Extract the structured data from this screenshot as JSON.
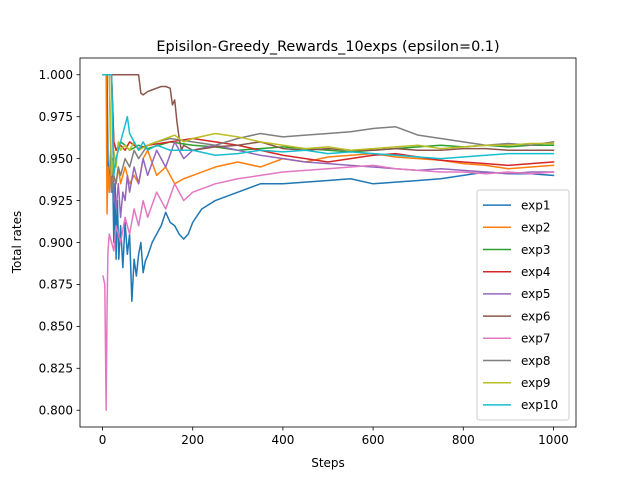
{
  "chart_data": {
    "type": "line",
    "title": "Episilon-Greedy_Rewards_10exps (epsilon=0.1)",
    "xlabel": "Steps",
    "ylabel": "Total rates",
    "xlim": [
      -50,
      1050
    ],
    "ylim": [
      0.79,
      1.01
    ],
    "xticks": [
      0,
      200,
      400,
      600,
      800,
      1000
    ],
    "yticks": [
      0.8,
      0.825,
      0.85,
      0.875,
      0.9,
      0.925,
      0.95,
      0.975,
      1.0
    ],
    "ytick_labels": [
      "0.800",
      "0.825",
      "0.850",
      "0.875",
      "0.900",
      "0.925",
      "0.950",
      "0.975",
      "1.000"
    ],
    "legend_position": "lower-right",
    "grid": false,
    "series": [
      {
        "name": "exp1",
        "color": "#1f77b4",
        "x": [
          1,
          10,
          12,
          15,
          18,
          20,
          22,
          25,
          28,
          30,
          33,
          36,
          40,
          45,
          50,
          55,
          60,
          65,
          70,
          75,
          80,
          85,
          90,
          95,
          100,
          110,
          120,
          130,
          140,
          150,
          160,
          170,
          180,
          190,
          200,
          220,
          250,
          300,
          350,
          400,
          450,
          500,
          550,
          600,
          650,
          700,
          750,
          800,
          850,
          900,
          950,
          1000
        ],
        "y": [
          1.0,
          1.0,
          0.95,
          0.93,
          0.955,
          0.93,
          0.95,
          0.9,
          0.935,
          0.89,
          0.925,
          0.89,
          0.91,
          0.885,
          0.912,
          0.893,
          0.905,
          0.865,
          0.89,
          0.88,
          0.893,
          0.9,
          0.882,
          0.889,
          0.892,
          0.9,
          0.905,
          0.91,
          0.918,
          0.912,
          0.91,
          0.905,
          0.902,
          0.905,
          0.912,
          0.92,
          0.925,
          0.93,
          0.935,
          0.935,
          0.936,
          0.937,
          0.938,
          0.935,
          0.936,
          0.937,
          0.938,
          0.94,
          0.942,
          0.941,
          0.941,
          0.94
        ]
      },
      {
        "name": "exp2",
        "color": "#ff7f0e",
        "x": [
          1,
          8,
          10,
          12,
          15,
          18,
          20,
          25,
          30,
          35,
          40,
          50,
          60,
          70,
          80,
          90,
          100,
          120,
          140,
          160,
          180,
          200,
          250,
          300,
          350,
          400,
          450,
          500,
          550,
          600,
          650,
          700,
          750,
          800,
          850,
          900,
          950,
          1000
        ],
        "y": [
          1.0,
          1.0,
          0.917,
          0.945,
          0.93,
          0.945,
          0.936,
          0.94,
          0.935,
          0.945,
          0.935,
          0.945,
          0.935,
          0.94,
          0.935,
          0.95,
          0.955,
          0.94,
          0.945,
          0.935,
          0.938,
          0.94,
          0.945,
          0.948,
          0.945,
          0.95,
          0.948,
          0.951,
          0.952,
          0.953,
          0.951,
          0.95,
          0.949,
          0.947,
          0.946,
          0.944,
          0.945,
          0.946
        ]
      },
      {
        "name": "exp3",
        "color": "#2ca02c",
        "x": [
          1,
          20,
          25,
          30,
          40,
          50,
          60,
          80,
          100,
          150,
          200,
          250,
          300,
          350,
          400,
          450,
          500,
          550,
          600,
          650,
          700,
          750,
          800,
          850,
          900,
          950,
          1000
        ],
        "y": [
          1.0,
          1.0,
          0.96,
          0.955,
          0.96,
          0.958,
          0.955,
          0.958,
          0.956,
          0.96,
          0.958,
          0.957,
          0.955,
          0.956,
          0.957,
          0.956,
          0.955,
          0.954,
          0.955,
          0.956,
          0.957,
          0.958,
          0.957,
          0.958,
          0.957,
          0.958,
          0.958
        ]
      },
      {
        "name": "exp4",
        "color": "#d62728",
        "x": [
          1,
          20,
          25,
          30,
          40,
          50,
          60,
          80,
          100,
          150,
          200,
          250,
          300,
          350,
          400,
          450,
          500,
          550,
          600,
          650,
          700,
          750,
          800,
          850,
          900,
          950,
          1000
        ],
        "y": [
          1.0,
          1.0,
          0.96,
          0.955,
          0.958,
          0.955,
          0.96,
          0.956,
          0.958,
          0.96,
          0.962,
          0.96,
          0.958,
          0.955,
          0.952,
          0.95,
          0.948,
          0.95,
          0.952,
          0.953,
          0.951,
          0.949,
          0.948,
          0.947,
          0.946,
          0.947,
          0.948
        ]
      },
      {
        "name": "exp5",
        "color": "#9467bd",
        "x": [
          1,
          20,
          25,
          30,
          35,
          40,
          45,
          50,
          55,
          60,
          70,
          80,
          90,
          100,
          120,
          140,
          160,
          180,
          200,
          250,
          300,
          350,
          400,
          450,
          500,
          550,
          600,
          650,
          700,
          750,
          800,
          850,
          900,
          950,
          1000
        ],
        "y": [
          1.0,
          1.0,
          0.93,
          0.92,
          0.935,
          0.915,
          0.93,
          0.925,
          0.94,
          0.93,
          0.945,
          0.935,
          0.95,
          0.94,
          0.955,
          0.945,
          0.96,
          0.95,
          0.955,
          0.958,
          0.955,
          0.952,
          0.95,
          0.948,
          0.947,
          0.946,
          0.945,
          0.944,
          0.943,
          0.944,
          0.943,
          0.942,
          0.941,
          0.942,
          0.942
        ]
      },
      {
        "name": "exp6",
        "color": "#8c564b",
        "x": [
          1,
          80,
          85,
          90,
          100,
          110,
          120,
          130,
          140,
          150,
          155,
          160,
          165,
          170,
          175,
          180,
          200,
          250,
          300,
          350,
          400,
          450,
          500,
          550,
          600,
          650,
          700,
          750,
          800,
          850,
          900,
          950,
          1000
        ],
        "y": [
          1.0,
          1.0,
          0.989,
          0.988,
          0.99,
          0.991,
          0.992,
          0.993,
          0.993,
          0.992,
          0.982,
          0.985,
          0.972,
          0.962,
          0.955,
          0.958,
          0.955,
          0.957,
          0.958,
          0.96,
          0.956,
          0.955,
          0.956,
          0.955,
          0.955,
          0.956,
          0.955,
          0.955,
          0.956,
          0.956,
          0.955,
          0.955,
          0.955
        ]
      },
      {
        "name": "exp7",
        "color": "#e377c2",
        "x": [
          1,
          5,
          8,
          10,
          12,
          15,
          20,
          25,
          30,
          40,
          50,
          60,
          70,
          80,
          90,
          100,
          120,
          140,
          160,
          180,
          200,
          250,
          300,
          350,
          400,
          450,
          500,
          550,
          600,
          650,
          700,
          750,
          800,
          850,
          900,
          950,
          1000
        ],
        "y": [
          0.88,
          0.875,
          0.8,
          0.86,
          0.895,
          0.905,
          0.9,
          0.895,
          0.91,
          0.9,
          0.915,
          0.905,
          0.92,
          0.91,
          0.925,
          0.915,
          0.93,
          0.92,
          0.935,
          0.925,
          0.93,
          0.935,
          0.938,
          0.94,
          0.942,
          0.943,
          0.944,
          0.945,
          0.946,
          0.944,
          0.943,
          0.942,
          0.942,
          0.941,
          0.942,
          0.941,
          0.942
        ]
      },
      {
        "name": "exp8",
        "color": "#7f7f7f",
        "x": [
          1,
          15,
          20,
          25,
          30,
          35,
          40,
          50,
          60,
          70,
          80,
          100,
          120,
          150,
          200,
          250,
          300,
          350,
          400,
          450,
          500,
          550,
          600,
          650,
          700,
          750,
          800,
          850,
          900,
          950,
          1000
        ],
        "y": [
          1.0,
          1.0,
          0.93,
          0.94,
          0.935,
          0.945,
          0.94,
          0.95,
          0.945,
          0.955,
          0.95,
          0.958,
          0.96,
          0.962,
          0.96,
          0.958,
          0.962,
          0.965,
          0.963,
          0.964,
          0.965,
          0.966,
          0.968,
          0.969,
          0.964,
          0.962,
          0.96,
          0.958,
          0.959,
          0.958,
          0.96
        ]
      },
      {
        "name": "exp9",
        "color": "#bcbd22",
        "x": [
          1,
          15,
          20,
          25,
          30,
          35,
          40,
          50,
          60,
          70,
          80,
          100,
          120,
          140,
          160,
          180,
          200,
          250,
          300,
          350,
          400,
          450,
          500,
          550,
          600,
          650,
          700,
          750,
          800,
          850,
          900,
          950,
          1000
        ],
        "y": [
          1.0,
          1.0,
          0.94,
          0.955,
          0.945,
          0.96,
          0.955,
          0.958,
          0.955,
          0.96,
          0.955,
          0.958,
          0.96,
          0.962,
          0.964,
          0.96,
          0.962,
          0.965,
          0.963,
          0.96,
          0.958,
          0.956,
          0.957,
          0.955,
          0.956,
          0.957,
          0.958,
          0.956,
          0.957,
          0.958,
          0.958,
          0.959,
          0.959
        ]
      },
      {
        "name": "exp10",
        "color": "#17becf",
        "x": [
          1,
          20,
          25,
          30,
          40,
          50,
          55,
          60,
          70,
          80,
          90,
          100,
          120,
          150,
          200,
          250,
          300,
          350,
          400,
          450,
          500,
          550,
          600,
          650,
          700,
          750,
          800,
          850,
          900,
          950,
          1000
        ],
        "y": [
          1.0,
          1.0,
          0.94,
          0.95,
          0.96,
          0.97,
          0.975,
          0.965,
          0.96,
          0.955,
          0.96,
          0.955,
          0.958,
          0.955,
          0.955,
          0.952,
          0.953,
          0.955,
          0.954,
          0.955,
          0.953,
          0.954,
          0.953,
          0.952,
          0.951,
          0.95,
          0.951,
          0.952,
          0.953,
          0.953,
          0.953
        ]
      }
    ]
  }
}
